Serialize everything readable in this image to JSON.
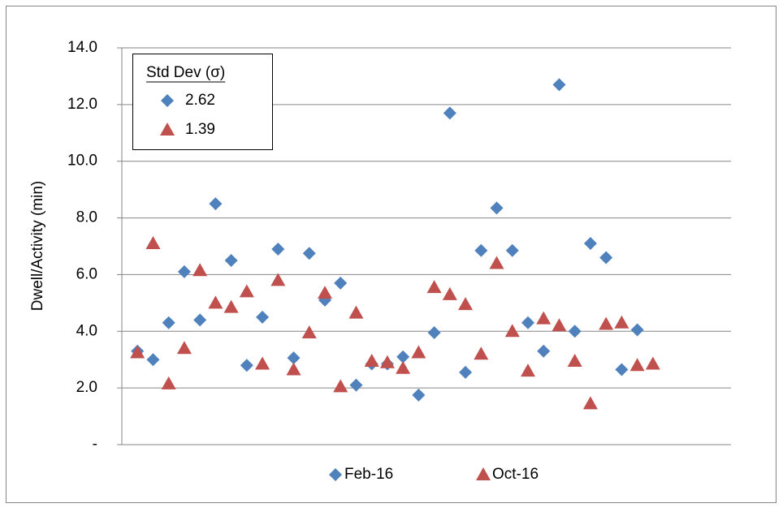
{
  "chart_data": {
    "type": "scatter",
    "y_label": "Dwell/Activity (min)",
    "stats_title": "Std Dev (σ)",
    "x": [
      1,
      2,
      3,
      4,
      5,
      6,
      7,
      8,
      9,
      10,
      11,
      12,
      13,
      14,
      15,
      16,
      17,
      18,
      19,
      20,
      21,
      22,
      23,
      24,
      25,
      26,
      27,
      28,
      29,
      30,
      31,
      32,
      33,
      34
    ],
    "xlim": [
      0,
      39
    ],
    "ylim": [
      0,
      14
    ],
    "yticks": [
      {
        "value": 0,
        "label": "-"
      },
      {
        "value": 2,
        "label": "2.0"
      },
      {
        "value": 4,
        "label": "4.0"
      },
      {
        "value": 6,
        "label": "6.0"
      },
      {
        "value": 8,
        "label": "8.0"
      },
      {
        "value": 10,
        "label": "10.0"
      },
      {
        "value": 12,
        "label": "12.0"
      },
      {
        "value": 14,
        "label": "14.0"
      }
    ],
    "grid": true,
    "legend": "bottom",
    "series": [
      {
        "name": "Feb-16",
        "color": "#4f81bd",
        "marker": "diamond",
        "std_dev": 2.62,
        "values": [
          3.3,
          3.0,
          4.3,
          6.1,
          4.4,
          8.5,
          6.5,
          2.8,
          4.5,
          6.9,
          3.06,
          6.75,
          5.1,
          5.7,
          2.1,
          2.85,
          2.85,
          3.1,
          1.75,
          3.95,
          11.7,
          2.55,
          6.85,
          8.35,
          6.85,
          4.3,
          3.3,
          12.7,
          4.0,
          7.1,
          6.6,
          2.65,
          4.05,
          null
        ]
      },
      {
        "name": "Oct-16",
        "color": "#c0504d",
        "marker": "triangle",
        "std_dev": 1.39,
        "values": [
          3.25,
          7.1,
          2.15,
          3.4,
          6.15,
          5.0,
          4.85,
          5.4,
          2.85,
          5.8,
          2.65,
          3.95,
          5.35,
          2.05,
          4.65,
          2.95,
          2.9,
          2.7,
          3.25,
          5.55,
          5.3,
          4.95,
          3.2,
          6.4,
          4.0,
          2.6,
          4.45,
          4.2,
          2.95,
          1.45,
          4.25,
          4.3,
          2.8,
          2.85
        ]
      }
    ]
  }
}
